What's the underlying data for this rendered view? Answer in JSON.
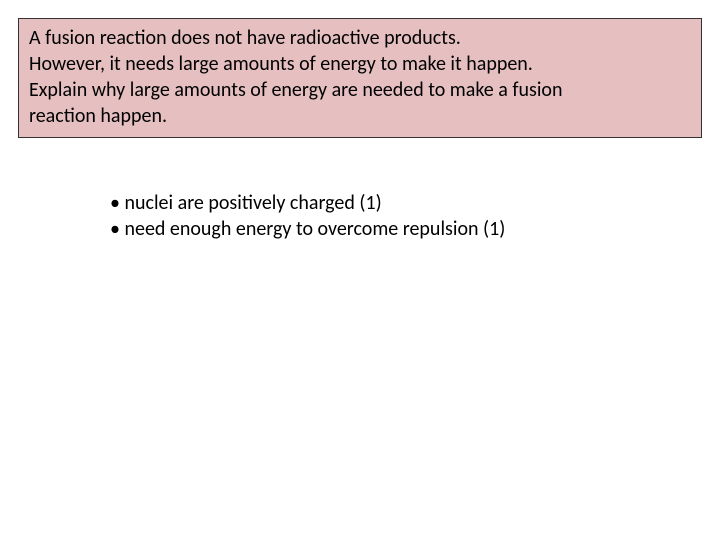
{
  "question_box": {
    "background_color": "#e6bfc0",
    "border_color": "#333333",
    "text_color": "#000000",
    "font_size": 20,
    "lines": [
      "A fusion reaction does not have radioactive products.",
      "However, it needs large amounts of energy to make it happen.",
      "Explain why large amounts of energy are needed to make a fusion",
      "reaction happen."
    ]
  },
  "answer": {
    "text_color": "#000000",
    "font_size": 20,
    "bullets": [
      "• nuclei are positively charged (1)",
      "• need enough energy to overcome repulsion (1)"
    ]
  }
}
